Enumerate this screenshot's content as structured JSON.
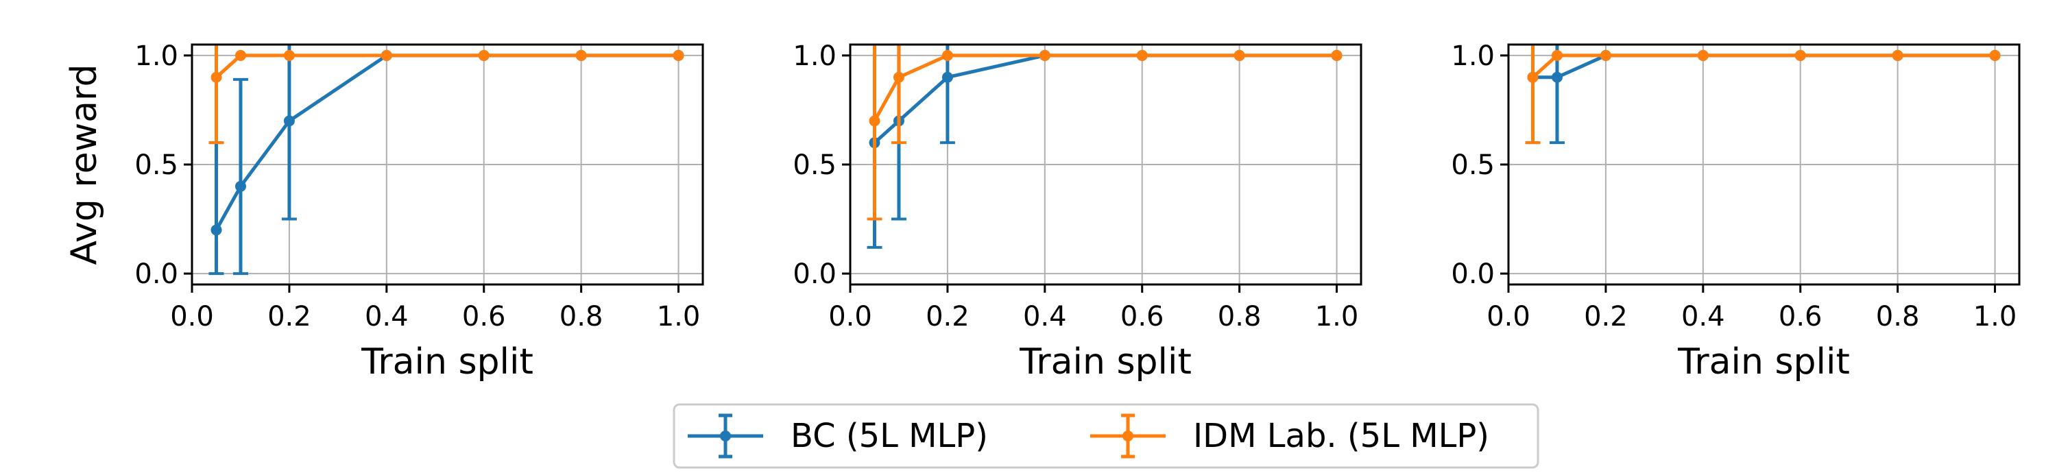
{
  "chart_data": [
    {
      "type": "line",
      "xlabel": "Train split",
      "ylabel": "Avg reward",
      "xlim": [
        0.0,
        1.05
      ],
      "ylim": [
        -0.05,
        1.05
      ],
      "xticks": [
        "0.0",
        "0.2",
        "0.4",
        "0.6",
        "0.8",
        "1.0"
      ],
      "yticks": [
        "0.0",
        "0.5",
        "1.0"
      ],
      "grid": true,
      "series": [
        {
          "name": "BC (5L MLP)",
          "color": "#1f77b4",
          "x": [
            0.05,
            0.1,
            0.2,
            0.4,
            0.6,
            0.8,
            1.0
          ],
          "y": [
            0.2,
            0.4,
            0.7,
            1.0,
            1.0,
            1.0,
            1.0
          ],
          "err_low": [
            0.0,
            0.0,
            0.25,
            1.0,
            1.0,
            1.0,
            1.0
          ],
          "err_high": [
            0.6,
            0.89,
            1.05,
            1.0,
            1.0,
            1.0,
            1.0
          ]
        },
        {
          "name": "IDM Lab. (5L MLP)",
          "color": "#ff7f0e",
          "x": [
            0.05,
            0.1,
            0.2,
            0.4,
            0.6,
            0.8,
            1.0
          ],
          "y": [
            0.9,
            1.0,
            1.0,
            1.0,
            1.0,
            1.0,
            1.0
          ],
          "err_low": [
            0.6,
            1.0,
            1.0,
            1.0,
            1.0,
            1.0,
            1.0
          ],
          "err_high": [
            1.05,
            1.0,
            1.0,
            1.0,
            1.0,
            1.0,
            1.0
          ]
        }
      ]
    },
    {
      "type": "line",
      "xlabel": "Train split",
      "ylabel": "",
      "xlim": [
        0.0,
        1.05
      ],
      "ylim": [
        -0.05,
        1.05
      ],
      "xticks": [
        "0.0",
        "0.2",
        "0.4",
        "0.6",
        "0.8",
        "1.0"
      ],
      "yticks": [
        "0.0",
        "0.5",
        "1.0"
      ],
      "grid": true,
      "series": [
        {
          "name": "BC (5L MLP)",
          "color": "#1f77b4",
          "x": [
            0.05,
            0.1,
            0.2,
            0.4,
            0.6,
            0.8,
            1.0
          ],
          "y": [
            0.6,
            0.7,
            0.9,
            1.0,
            1.0,
            1.0,
            1.0
          ],
          "err_low": [
            0.12,
            0.25,
            0.6,
            1.0,
            1.0,
            1.0,
            1.0
          ],
          "err_high": [
            1.05,
            1.05,
            1.05,
            1.0,
            1.0,
            1.0,
            1.0
          ]
        },
        {
          "name": "IDM Lab. (5L MLP)",
          "color": "#ff7f0e",
          "x": [
            0.05,
            0.1,
            0.2,
            0.4,
            0.6,
            0.8,
            1.0
          ],
          "y": [
            0.7,
            0.9,
            1.0,
            1.0,
            1.0,
            1.0,
            1.0
          ],
          "err_low": [
            0.25,
            0.6,
            1.0,
            1.0,
            1.0,
            1.0,
            1.0
          ],
          "err_high": [
            1.05,
            1.05,
            1.0,
            1.0,
            1.0,
            1.0,
            1.0
          ]
        }
      ]
    },
    {
      "type": "line",
      "xlabel": "Train split",
      "ylabel": "",
      "xlim": [
        0.0,
        1.05
      ],
      "ylim": [
        -0.05,
        1.05
      ],
      "xticks": [
        "0.0",
        "0.2",
        "0.4",
        "0.6",
        "0.8",
        "1.0"
      ],
      "yticks": [
        "0.0",
        "0.5",
        "1.0"
      ],
      "grid": true,
      "series": [
        {
          "name": "BC (5L MLP)",
          "color": "#1f77b4",
          "x": [
            0.05,
            0.1,
            0.2,
            0.4,
            0.6,
            0.8,
            1.0
          ],
          "y": [
            0.9,
            0.9,
            1.0,
            1.0,
            1.0,
            1.0,
            1.0
          ],
          "err_low": [
            0.6,
            0.6,
            1.0,
            1.0,
            1.0,
            1.0,
            1.0
          ],
          "err_high": [
            1.05,
            1.05,
            1.0,
            1.0,
            1.0,
            1.0,
            1.0
          ]
        },
        {
          "name": "IDM Lab. (5L MLP)",
          "color": "#ff7f0e",
          "x": [
            0.05,
            0.1,
            0.2,
            0.4,
            0.6,
            0.8,
            1.0
          ],
          "y": [
            0.9,
            1.0,
            1.0,
            1.0,
            1.0,
            1.0,
            1.0
          ],
          "err_low": [
            0.6,
            1.0,
            1.0,
            1.0,
            1.0,
            1.0,
            1.0
          ],
          "err_high": [
            1.05,
            1.0,
            1.0,
            1.0,
            1.0,
            1.0,
            1.0
          ]
        }
      ]
    }
  ],
  "legend": {
    "placement": "bottom-center",
    "entries": [
      {
        "label": "BC (5L MLP)",
        "color": "#1f77b4"
      },
      {
        "label": "IDM Lab. (5L MLP)",
        "color": "#ff7f0e"
      }
    ]
  }
}
